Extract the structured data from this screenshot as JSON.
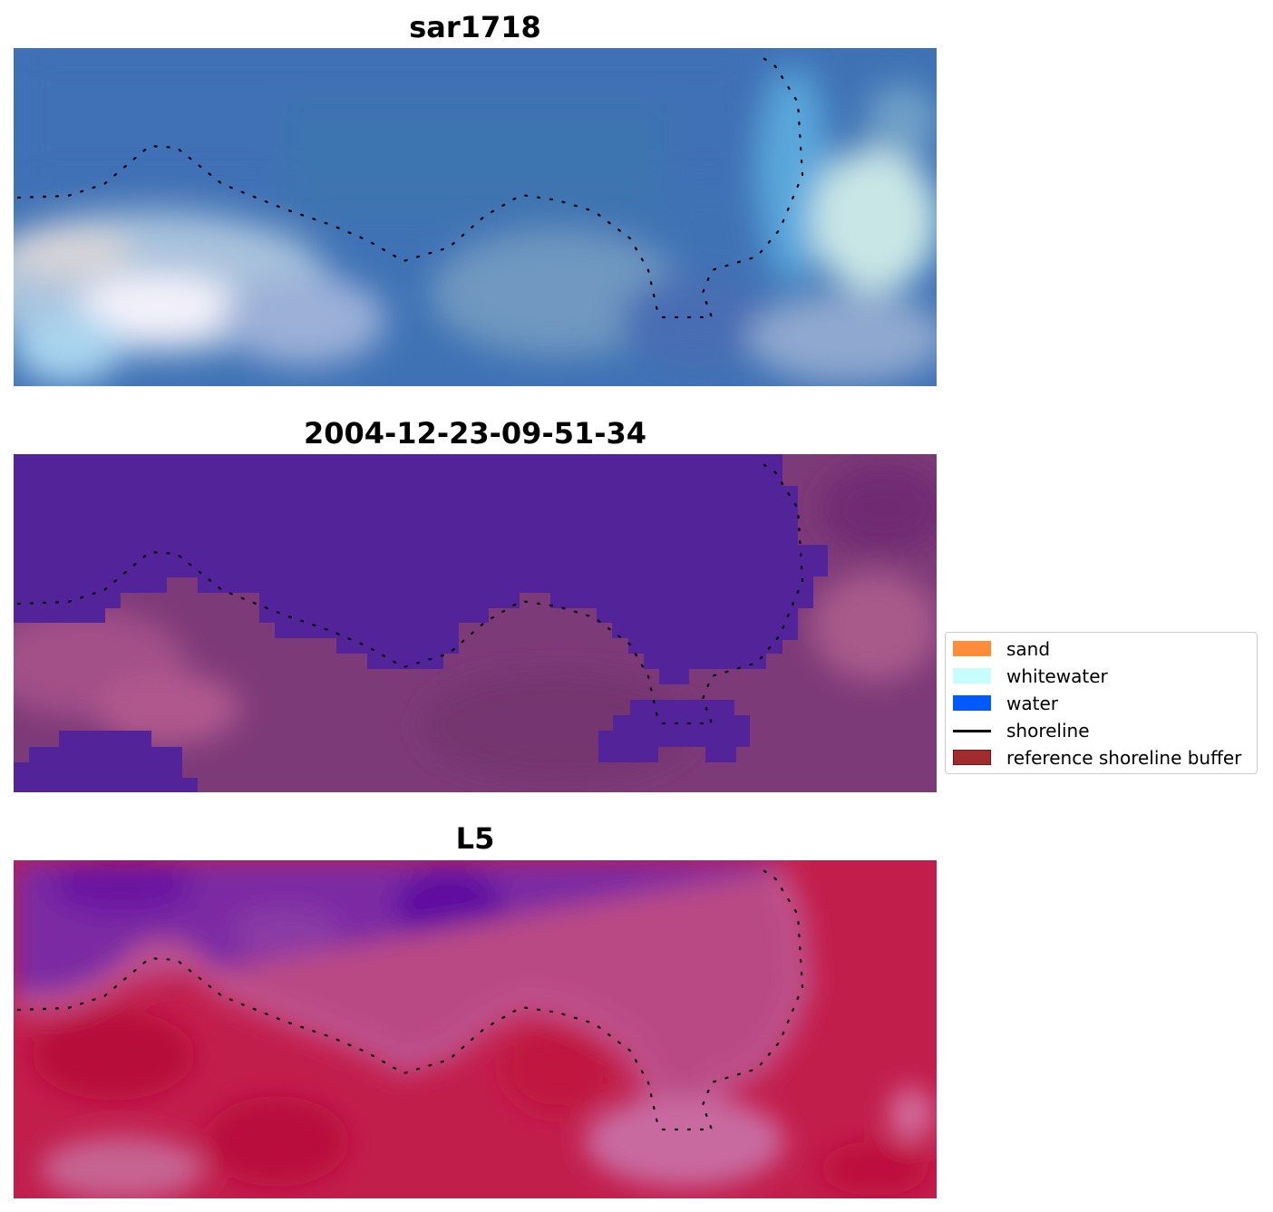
{
  "panels": [
    {
      "title": "sar1718",
      "image": "RGB satellite composite (blue water, pale cloudy patches)"
    },
    {
      "title": "2004-12-23-09-51-34",
      "image": "classified image: water in dark purple over pink/magenta land"
    },
    {
      "title": "L5",
      "image": "MNDWI index map: purple water, crimson land"
    }
  ],
  "legend": {
    "items": [
      {
        "label": "sand",
        "color": "#ff8c3b",
        "kind": "patch"
      },
      {
        "label": "whitewater",
        "color": "#c8fdfd",
        "kind": "patch"
      },
      {
        "label": "water",
        "color": "#005aff",
        "kind": "patch"
      },
      {
        "label": "shoreline",
        "color": "#000000",
        "kind": "line"
      },
      {
        "label": "reference shoreline buffer",
        "color": "#a12c2c",
        "kind": "patch"
      }
    ]
  },
  "colors": {
    "water_class": "#532499",
    "land_class": "#7d3a78",
    "land_index": "#c21e4c",
    "water_index": "#7b2aa3"
  }
}
